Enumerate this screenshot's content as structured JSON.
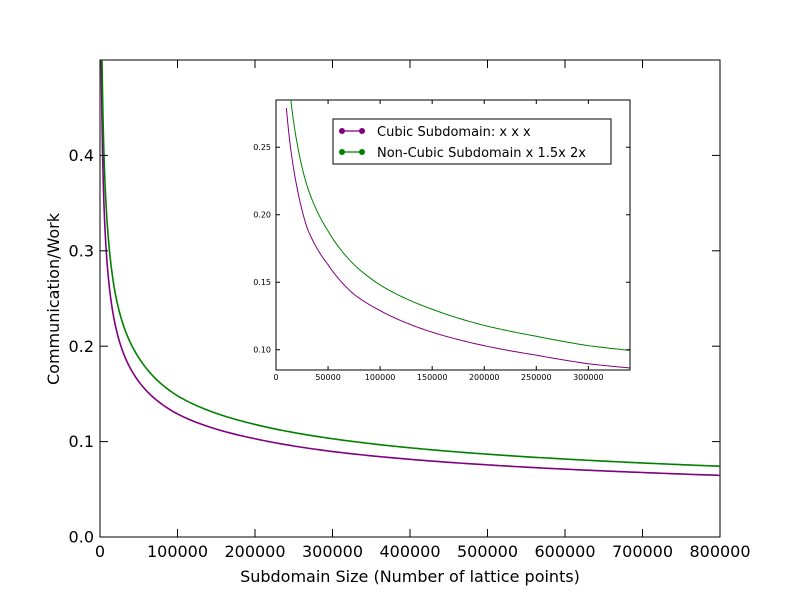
{
  "chart_data": [
    {
      "type": "line",
      "title": "",
      "xlabel": "Subdomain Size (Number of lattice points)",
      "ylabel": "Communication/Work",
      "xlim": [
        0,
        800000
      ],
      "ylim": [
        0,
        0.5
      ],
      "xticks": [
        0,
        100000,
        200000,
        300000,
        400000,
        500000,
        600000,
        700000,
        800000
      ],
      "yticks": [
        0.0,
        0.1,
        0.2,
        0.3,
        0.4
      ],
      "xtick_labels": [
        "0",
        "100000",
        "200000",
        "300000",
        "400000",
        "500000",
        "600000",
        "700000",
        "800000"
      ],
      "ytick_labels": [
        "0.0",
        "0.1",
        "0.2",
        "0.3",
        "0.4"
      ],
      "grid": false,
      "series": [
        {
          "color": "#800080",
          "x": [
            1000,
            2000,
            5000,
            10000,
            20000,
            50000,
            100000,
            200000,
            300000,
            400000,
            500000,
            600000,
            700000,
            800000
          ],
          "y": [
            0.6,
            0.476,
            0.351,
            0.279,
            0.221,
            0.163,
            0.129,
            0.103,
            0.0896,
            0.0814,
            0.0756,
            0.0711,
            0.0676,
            0.0646
          ]
        },
        {
          "color": "#008000",
          "x": [
            1000,
            2000,
            5000,
            10000,
            20000,
            50000,
            100000,
            200000,
            300000,
            400000,
            500000,
            600000,
            700000,
            800000
          ],
          "y": [
            0.7,
            0.548,
            0.404,
            0.321,
            0.254,
            0.188,
            0.148,
            0.118,
            0.103,
            0.0935,
            0.0868,
            0.0817,
            0.0776,
            0.0742
          ]
        }
      ]
    },
    {
      "type": "line",
      "title": "",
      "xlabel": "",
      "ylabel": "",
      "xlim": [
        0,
        340000
      ],
      "ylim": [
        0.085,
        0.285
      ],
      "xticks": [
        0,
        50000,
        100000,
        150000,
        200000,
        250000,
        300000
      ],
      "yticks": [
        0.1,
        0.15,
        0.2,
        0.25
      ],
      "xtick_labels": [
        "0",
        "50000",
        "100000",
        "150000",
        "200000",
        "250000",
        "300000"
      ],
      "ytick_labels": [
        "0.10",
        "0.15",
        "0.20",
        "0.25"
      ],
      "grid": false,
      "legend_position": "top-right",
      "series": [
        {
          "name": "Cubic Subdomain: x x x",
          "color": "#800080",
          "x": [
            10000,
            15000,
            20000,
            30000,
            50000,
            75000,
            100000,
            150000,
            200000,
            250000,
            300000,
            340000
          ],
          "y": [
            0.279,
            0.244,
            0.221,
            0.19,
            0.163,
            0.141,
            0.129,
            0.113,
            0.103,
            0.096,
            0.0896,
            0.0865
          ]
        },
        {
          "name": "Non-Cubic Subdomain x 1.5x 2x",
          "color": "#008000",
          "x": [
            10000,
            15000,
            20000,
            30000,
            50000,
            75000,
            100000,
            150000,
            200000,
            250000,
            300000,
            340000
          ],
          "y": [
            0.321,
            0.28,
            0.254,
            0.221,
            0.188,
            0.163,
            0.148,
            0.13,
            0.118,
            0.11,
            0.103,
            0.0995
          ]
        }
      ]
    }
  ]
}
